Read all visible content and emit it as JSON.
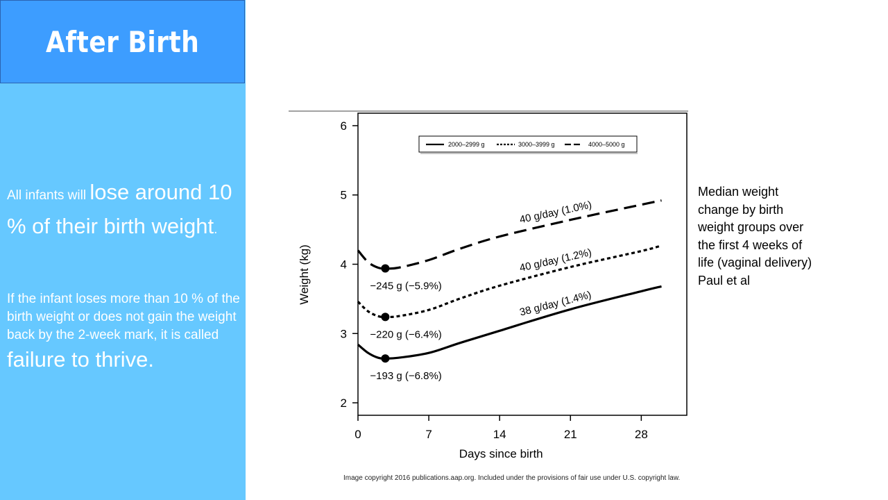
{
  "slide": {
    "title": "After Birth",
    "para1": {
      "small": "All infants will ",
      "big": "lose around 10 % of their birth weight",
      "end": "."
    },
    "para2": {
      "small": "If the infant loses more than 10 % of the birth weight or does not gain the weight back by the 2-week mark, it is called ",
      "big": "failure to thrive."
    },
    "caption_lines": [
      "Median weight",
      "change by birth",
      "weight groups over",
      "the first 4 weeks of",
      "life (vaginal delivery)",
      "Paul et al"
    ],
    "copyright": "Image copyright 2016 publications.aap.org. Included under the provisions of fair use under U.S. copyright law."
  },
  "chart_data": {
    "type": "line",
    "xlabel": "Days since birth",
    "ylabel": "Weight (kg)",
    "xlim": [
      0,
      32.5
    ],
    "ylim": [
      1.82,
      6.18
    ],
    "xticks": [
      0,
      7,
      14,
      21,
      28
    ],
    "yticks": [
      2,
      3,
      4,
      5,
      6
    ],
    "legend_position": "top-center",
    "series": [
      {
        "name": "2000–2999 g",
        "style": "solid",
        "points": [
          [
            0,
            2.84
          ],
          [
            1,
            2.72
          ],
          [
            2,
            2.65
          ],
          [
            2.7,
            2.64
          ],
          [
            4,
            2.65
          ],
          [
            7,
            2.72
          ],
          [
            10,
            2.86
          ],
          [
            14,
            3.04
          ],
          [
            21,
            3.35
          ],
          [
            28,
            3.61
          ],
          [
            30,
            3.68
          ]
        ],
        "min_point": [
          2.7,
          2.64
        ],
        "min_label": "−193 g (−6.8%)",
        "rate_label": "38 g/day (1.4%)"
      },
      {
        "name": "3000–3999 g",
        "style": "dotted",
        "points": [
          [
            0,
            3.46
          ],
          [
            1,
            3.32
          ],
          [
            2,
            3.25
          ],
          [
            2.7,
            3.24
          ],
          [
            4,
            3.25
          ],
          [
            7,
            3.34
          ],
          [
            10,
            3.5
          ],
          [
            14,
            3.69
          ],
          [
            21,
            3.96
          ],
          [
            28,
            4.19
          ],
          [
            30,
            4.27
          ]
        ],
        "min_point": [
          2.7,
          3.24
        ],
        "min_label": "−220 g (−6.4%)",
        "rate_label": "40 g/day (1.2%)"
      },
      {
        "name": "4000–5000 g",
        "style": "dashed",
        "points": [
          [
            0,
            4.2
          ],
          [
            1,
            4.03
          ],
          [
            2,
            3.95
          ],
          [
            2.7,
            3.94
          ],
          [
            4,
            3.95
          ],
          [
            7,
            4.06
          ],
          [
            10,
            4.22
          ],
          [
            14,
            4.4
          ],
          [
            21,
            4.64
          ],
          [
            28,
            4.86
          ],
          [
            30,
            4.92
          ]
        ],
        "min_point": [
          2.7,
          3.94
        ],
        "min_label": "−245 g (−5.9%)",
        "rate_label": "40 g/day (1.0%)"
      }
    ]
  }
}
